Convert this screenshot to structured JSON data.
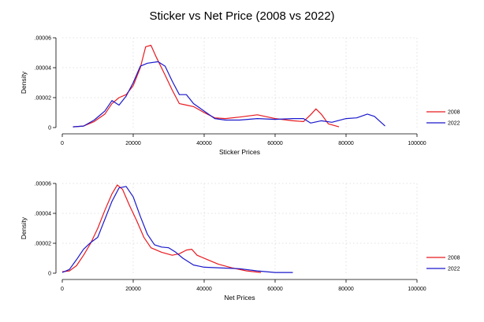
{
  "title": "Sticker vs Net Price (2008 vs 2022)",
  "colors": {
    "s2008": "#e8191f",
    "s2022": "#1a18cc",
    "grid": "#d9d9d9",
    "axis": "#000000"
  },
  "chart_data": [
    {
      "type": "line",
      "xlabel": "Sticker Prices",
      "ylabel": "Density",
      "xlim": [
        0,
        100000
      ],
      "ylim": [
        0,
        6e-05
      ],
      "x_ticks": [
        {
          "v": 0,
          "label": "0"
        },
        {
          "v": 20000,
          "label": "20000"
        },
        {
          "v": 40000,
          "label": "40000"
        },
        {
          "v": 60000,
          "label": "60000"
        },
        {
          "v": 80000,
          "label": "80000"
        },
        {
          "v": 100000,
          "label": "100000"
        }
      ],
      "y_ticks": [
        {
          "v": 0,
          "label": "0"
        },
        {
          "v": 2e-05,
          "label": ".00002"
        },
        {
          "v": 4e-05,
          "label": ".00004"
        },
        {
          "v": 6e-05,
          "label": ".00006"
        }
      ],
      "grid": true,
      "legend": "right",
      "series": [
        {
          "name": "2008",
          "color_key": "s2008",
          "points": [
            [
              3000,
              5e-07
            ],
            [
              6000,
              1e-06
            ],
            [
              9000,
              4e-06
            ],
            [
              12000,
              9e-06
            ],
            [
              14000,
              1.6e-05
            ],
            [
              16000,
              2e-05
            ],
            [
              18000,
              2.2e-05
            ],
            [
              20000,
              2.8e-05
            ],
            [
              22000,
              4e-05
            ],
            [
              23500,
              5.4e-05
            ],
            [
              25000,
              5.5e-05
            ],
            [
              26500,
              4.7e-05
            ],
            [
              29000,
              3.5e-05
            ],
            [
              31000,
              2.5e-05
            ],
            [
              33000,
              1.6e-05
            ],
            [
              35000,
              1.5e-05
            ],
            [
              37000,
              1.4e-05
            ],
            [
              40000,
              1e-05
            ],
            [
              43000,
              6.5e-06
            ],
            [
              46000,
              6e-06
            ],
            [
              50000,
              7e-06
            ],
            [
              55000,
              8.5e-06
            ],
            [
              60000,
              6e-06
            ],
            [
              65000,
              4.5e-06
            ],
            [
              68000,
              4e-06
            ],
            [
              70000,
              8.5e-06
            ],
            [
              71500,
              1.25e-05
            ],
            [
              73000,
              9e-06
            ],
            [
              75000,
              2.5e-06
            ],
            [
              78000,
              5e-07
            ]
          ]
        },
        {
          "name": "2022",
          "color_key": "s2022",
          "points": [
            [
              3000,
              5e-07
            ],
            [
              6000,
              1e-06
            ],
            [
              9000,
              5e-06
            ],
            [
              12000,
              1.1e-05
            ],
            [
              14000,
              1.8e-05
            ],
            [
              16000,
              1.5e-05
            ],
            [
              18000,
              2.1e-05
            ],
            [
              20000,
              3e-05
            ],
            [
              22000,
              4.1e-05
            ],
            [
              24000,
              4.3e-05
            ],
            [
              27000,
              4.4e-05
            ],
            [
              29000,
              4.1e-05
            ],
            [
              31000,
              3.1e-05
            ],
            [
              33000,
              2.2e-05
            ],
            [
              35000,
              2.2e-05
            ],
            [
              37000,
              1.6e-05
            ],
            [
              40000,
              1.1e-05
            ],
            [
              43000,
              6e-06
            ],
            [
              46000,
              5e-06
            ],
            [
              50000,
              5e-06
            ],
            [
              55000,
              6e-06
            ],
            [
              60000,
              5.5e-06
            ],
            [
              65000,
              6e-06
            ],
            [
              68000,
              6e-06
            ],
            [
              70000,
              3e-06
            ],
            [
              73000,
              4.5e-06
            ],
            [
              76000,
              3.5e-06
            ],
            [
              80000,
              6e-06
            ],
            [
              83000,
              6.5e-06
            ],
            [
              86000,
              9e-06
            ],
            [
              88000,
              7.5e-06
            ],
            [
              91000,
              1e-06
            ]
          ]
        }
      ]
    },
    {
      "type": "line",
      "xlabel": "Net Prices",
      "ylabel": "Density",
      "xlim": [
        0,
        100000
      ],
      "ylim": [
        0,
        6e-05
      ],
      "x_ticks": [
        {
          "v": 0,
          "label": "0"
        },
        {
          "v": 20000,
          "label": "20000"
        },
        {
          "v": 40000,
          "label": "40000"
        },
        {
          "v": 60000,
          "label": "60000"
        },
        {
          "v": 80000,
          "label": "80000"
        },
        {
          "v": 100000,
          "label": "100000"
        }
      ],
      "y_ticks": [
        {
          "v": 0,
          "label": "0"
        },
        {
          "v": 2e-05,
          "label": ".00002"
        },
        {
          "v": 4e-05,
          "label": ".00004"
        },
        {
          "v": 6e-05,
          "label": ".00006"
        }
      ],
      "grid": true,
      "legend": "right",
      "series": [
        {
          "name": "2008",
          "color_key": "s2008",
          "points": [
            [
              0,
              1e-06
            ],
            [
              2000,
              1.5e-06
            ],
            [
              4000,
              5e-06
            ],
            [
              6000,
              1.2e-05
            ],
            [
              8000,
              2e-05
            ],
            [
              10000,
              3e-05
            ],
            [
              12000,
              4.2e-05
            ],
            [
              14000,
              5.3e-05
            ],
            [
              15500,
              5.9e-05
            ],
            [
              17000,
              5.6e-05
            ],
            [
              19000,
              4.5e-05
            ],
            [
              21000,
              3.5e-05
            ],
            [
              23000,
              2.4e-05
            ],
            [
              25000,
              1.7e-05
            ],
            [
              28000,
              1.4e-05
            ],
            [
              31000,
              1.2e-05
            ],
            [
              33000,
              1.3e-05
            ],
            [
              35000,
              1.55e-05
            ],
            [
              36500,
              1.6e-05
            ],
            [
              38000,
              1.2e-05
            ],
            [
              41000,
              9e-06
            ],
            [
              44000,
              6e-06
            ],
            [
              48000,
              3.5e-06
            ],
            [
              52000,
              1.5e-06
            ],
            [
              56000,
              5e-07
            ]
          ]
        },
        {
          "name": "2022",
          "color_key": "s2022",
          "points": [
            [
              0,
              5e-07
            ],
            [
              2000,
              2.5e-06
            ],
            [
              4000,
              9e-06
            ],
            [
              6000,
              1.6e-05
            ],
            [
              8000,
              2.05e-05
            ],
            [
              10000,
              2.4e-05
            ],
            [
              12000,
              3.6e-05
            ],
            [
              14000,
              4.8e-05
            ],
            [
              16000,
              5.7e-05
            ],
            [
              18000,
              5.8e-05
            ],
            [
              20000,
              5.1e-05
            ],
            [
              22000,
              3.8e-05
            ],
            [
              24000,
              2.6e-05
            ],
            [
              26000,
              1.9e-05
            ],
            [
              28000,
              1.75e-05
            ],
            [
              30000,
              1.7e-05
            ],
            [
              32000,
              1.4e-05
            ],
            [
              34000,
              1e-05
            ],
            [
              37000,
              5.5e-06
            ],
            [
              40000,
              4e-06
            ],
            [
              45000,
              3.5e-06
            ],
            [
              50000,
              3e-06
            ],
            [
              55000,
              1.5e-06
            ],
            [
              60000,
              5e-07
            ],
            [
              65000,
              5e-07
            ]
          ]
        }
      ]
    }
  ]
}
